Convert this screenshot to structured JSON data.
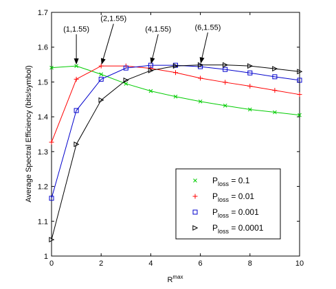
{
  "chart_data": {
    "type": "line",
    "xlabel": "R",
    "xlabel_sup": "max",
    "ylabel": "Average Spectral Efficiency (bits/symbol)",
    "xlim": [
      0,
      10
    ],
    "ylim": [
      1,
      1.7
    ],
    "xticks": [
      0,
      2,
      4,
      6,
      8,
      10
    ],
    "yticks": [
      1,
      1.1,
      1.2,
      1.3,
      1.4,
      1.5,
      1.6,
      1.7
    ],
    "grid": false,
    "legend_position": "bottom-right",
    "x": [
      0,
      1,
      2,
      3,
      4,
      5,
      6,
      7,
      8,
      9,
      10
    ],
    "series": [
      {
        "name_prefix": "P",
        "name_sub": "loss",
        "name_suffix": " = 0.1",
        "color": "#00cc00",
        "marker": "x",
        "values": [
          1.541,
          1.546,
          1.522,
          1.495,
          1.474,
          1.458,
          1.444,
          1.432,
          1.421,
          1.413,
          1.405
        ]
      },
      {
        "name_prefix": "P",
        "name_sub": "loss",
        "name_suffix": " = 0.01",
        "color": "#ff0000",
        "marker": "+",
        "values": [
          1.327,
          1.508,
          1.546,
          1.546,
          1.539,
          1.527,
          1.511,
          1.499,
          1.488,
          1.476,
          1.464
        ]
      },
      {
        "name_prefix": "P",
        "name_sub": "loss",
        "name_suffix": " = 0.001",
        "color": "#0000cc",
        "marker": "square",
        "values": [
          1.166,
          1.418,
          1.508,
          1.54,
          1.548,
          1.548,
          1.544,
          1.536,
          1.526,
          1.515,
          1.505
        ]
      },
      {
        "name_prefix": "P",
        "name_sub": "loss",
        "name_suffix": " = 0.0001",
        "color": "#000000",
        "marker": "triangle-right",
        "values": [
          1.047,
          1.321,
          1.448,
          1.505,
          1.533,
          1.546,
          1.549,
          1.549,
          1.546,
          1.538,
          1.53
        ]
      }
    ],
    "annotations": [
      {
        "text": "(1,1.55)",
        "x": 1,
        "y": 1.546,
        "label_x": 1,
        "label_y": 1.645
      },
      {
        "text": "(2,1.55)",
        "x": 2,
        "y": 1.546,
        "label_x": 2.5,
        "label_y": 1.675
      },
      {
        "text": "(4,1.55)",
        "x": 4,
        "y": 1.548,
        "label_x": 4.3,
        "label_y": 1.645
      },
      {
        "text": "(6,1.55)",
        "x": 6,
        "y": 1.549,
        "label_x": 6.3,
        "label_y": 1.65
      }
    ]
  }
}
